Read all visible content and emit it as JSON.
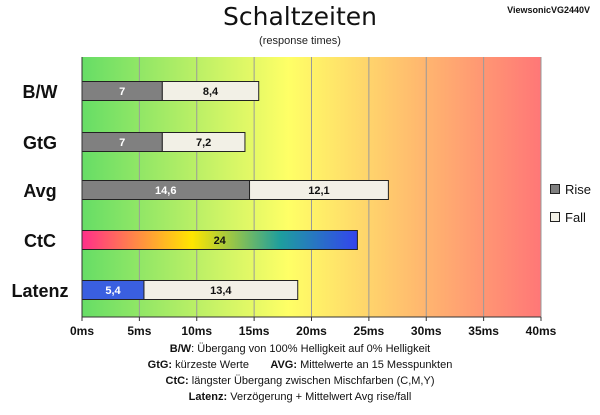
{
  "header": {
    "title": "Schaltzeiten",
    "subtitle": "(response times)",
    "model": "ViewsonicVG2440V"
  },
  "legend": [
    {
      "label": "Rise",
      "color": "#808080"
    },
    {
      "label": "Fall",
      "color": "#f2f0e6"
    }
  ],
  "footer": {
    "line1_key": "B/W",
    "line1_text": ":  Übergang von 100% Helligkeit auf 0% Helligkeit",
    "line2a_key": "GtG:",
    "line2a_text": " kürzeste  Werte",
    "line2b_key": "AVG:",
    "line2b_text": " Mittelwerte  an 15 Messpunkten",
    "line3_key": "CtC:",
    "line3_text": " längster Übergang  zwischen Mischfarben  (C,M,Y)",
    "line4_key": "Latenz:",
    "line4_text": " Verzögerung  + Mittelwert Avg rise/fall"
  },
  "chart_data": {
    "type": "bar",
    "orientation": "horizontal",
    "stacked": true,
    "title": "Schaltzeiten",
    "subtitle": "(response times)",
    "categories": [
      "B/W",
      "GtG",
      "Avg",
      "CtC",
      "Latenz"
    ],
    "series": [
      {
        "name": "Rise",
        "values": [
          7,
          7,
          14.6,
          24,
          5.4
        ],
        "labels": [
          "7",
          "7",
          "14,6",
          "24",
          "5,4"
        ]
      },
      {
        "name": "Fall",
        "values": [
          8.4,
          7.2,
          12.1,
          0,
          13.4
        ],
        "labels": [
          "8,4",
          "7,2",
          "12,1",
          "",
          "13,4"
        ]
      }
    ],
    "xlim": [
      0,
      40
    ],
    "xticks": [
      "0ms",
      "5ms",
      "10ms",
      "15ms",
      "20ms",
      "25ms",
      "30ms",
      "35ms",
      "40ms"
    ],
    "grid": true,
    "legend_position": "right",
    "colors": {
      "rise": "#808080",
      "fall": "#f2f0e6",
      "latenz_rise": "#3a5fe0",
      "background_gradient": [
        "#66dd66",
        "#ffff66",
        "#ff7777"
      ],
      "ctc_gradient": [
        "#ff2e8a",
        "#ffe600",
        "#1e9e9e",
        "#3344ee"
      ]
    }
  }
}
